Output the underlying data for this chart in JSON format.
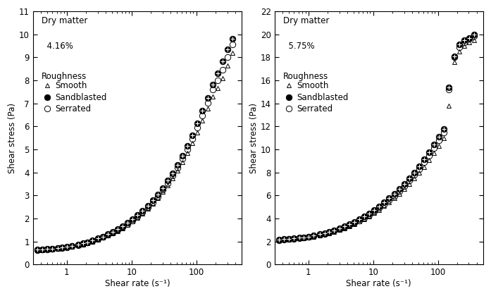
{
  "plot1": {
    "dry_matter_line1": "Dry matter",
    "dry_matter_line2": "  4.16%",
    "roughness_label": "Roughness",
    "ylabel": "Shear stress (Pa)",
    "xlabel": "Shear rate (s⁻¹)",
    "ylim": [
      0,
      11
    ],
    "yticks": [
      0,
      1,
      2,
      3,
      4,
      5,
      6,
      7,
      8,
      9,
      10,
      11
    ],
    "xlim_log": [
      0.3,
      500
    ],
    "shared_x": [
      0.35,
      0.42,
      0.5,
      0.6,
      0.72,
      0.85,
      1.0,
      1.2,
      1.5,
      1.8,
      2.1,
      2.5,
      3.0,
      3.6,
      4.3,
      5.1,
      6.1,
      7.3,
      8.7,
      10.4,
      12.4,
      14.8,
      17.7,
      21.1,
      25.2,
      30.1,
      35.9,
      42.9,
      51.2,
      61.2,
      73.1,
      87.3,
      104.3,
      124.6,
      148.8,
      177.8,
      212.3,
      253.5,
      302.9,
      361.8
    ],
    "smooth_y": [
      0.62,
      0.63,
      0.64,
      0.66,
      0.68,
      0.7,
      0.73,
      0.77,
      0.82,
      0.88,
      0.93,
      1.0,
      1.08,
      1.16,
      1.25,
      1.35,
      1.46,
      1.58,
      1.72,
      1.87,
      2.04,
      2.22,
      2.42,
      2.64,
      2.88,
      3.15,
      3.43,
      3.74,
      4.08,
      4.45,
      4.85,
      5.28,
      5.75,
      6.25,
      6.78,
      7.3,
      7.65,
      8.1,
      8.65,
      9.2
    ],
    "sandblasted_y": [
      0.64,
      0.65,
      0.67,
      0.69,
      0.71,
      0.73,
      0.76,
      0.8,
      0.86,
      0.92,
      0.97,
      1.04,
      1.13,
      1.21,
      1.31,
      1.41,
      1.53,
      1.66,
      1.8,
      1.96,
      2.14,
      2.33,
      2.55,
      2.78,
      3.04,
      3.33,
      3.64,
      3.97,
      4.33,
      4.73,
      5.16,
      5.62,
      6.13,
      6.67,
      7.25,
      7.82,
      8.3,
      8.82,
      9.35,
      9.82
    ],
    "serrated_y": [
      0.63,
      0.64,
      0.66,
      0.68,
      0.7,
      0.72,
      0.75,
      0.79,
      0.84,
      0.9,
      0.95,
      1.02,
      1.1,
      1.19,
      1.28,
      1.38,
      1.5,
      1.62,
      1.76,
      1.91,
      2.09,
      2.28,
      2.48,
      2.71,
      2.96,
      3.24,
      3.54,
      3.86,
      4.21,
      4.59,
      5.01,
      5.46,
      5.95,
      6.47,
      7.03,
      7.6,
      8.0,
      8.45,
      9.0,
      9.55
    ]
  },
  "plot2": {
    "dry_matter_line1": "Dry matter",
    "dry_matter_line2": "  5.75%",
    "roughness_label": "Roughness",
    "ylabel": "Shear stress (Pa)",
    "xlabel": "Shear rate (s⁻¹)",
    "ylim": [
      0,
      22
    ],
    "yticks": [
      0,
      2,
      4,
      6,
      8,
      10,
      12,
      14,
      16,
      18,
      20,
      22
    ],
    "xlim_log": [
      0.3,
      500
    ],
    "shared_x": [
      0.35,
      0.42,
      0.5,
      0.6,
      0.72,
      0.85,
      1.0,
      1.2,
      1.5,
      1.8,
      2.1,
      2.5,
      3.0,
      3.6,
      4.3,
      5.1,
      6.1,
      7.3,
      8.7,
      10.4,
      12.4,
      14.8,
      17.7,
      21.1,
      25.2,
      30.1,
      35.9,
      42.9,
      51.2,
      61.2,
      73.1,
      87.3,
      104.3,
      124.6,
      148.8,
      177.8,
      212.3,
      253.5,
      302.9,
      361.8
    ],
    "smooth_y": [
      2.1,
      2.15,
      2.18,
      2.22,
      2.26,
      2.3,
      2.35,
      2.42,
      2.52,
      2.62,
      2.72,
      2.85,
      3.0,
      3.16,
      3.33,
      3.52,
      3.73,
      3.96,
      4.2,
      4.47,
      4.76,
      5.07,
      5.4,
      5.76,
      6.14,
      6.55,
      6.99,
      7.46,
      7.96,
      8.49,
      9.06,
      9.67,
      10.3,
      11.0,
      13.8,
      17.6,
      18.5,
      19.0,
      19.3,
      19.5
    ],
    "sandblasted_y": [
      2.15,
      2.2,
      2.23,
      2.27,
      2.32,
      2.37,
      2.43,
      2.51,
      2.62,
      2.73,
      2.83,
      2.98,
      3.14,
      3.32,
      3.5,
      3.7,
      3.93,
      4.18,
      4.44,
      4.73,
      5.05,
      5.39,
      5.75,
      6.14,
      6.56,
      7.01,
      7.49,
      8.0,
      8.54,
      9.12,
      9.74,
      10.4,
      11.1,
      11.8,
      15.4,
      18.1,
      19.1,
      19.5,
      19.7,
      20.0
    ],
    "serrated_y": [
      2.12,
      2.17,
      2.21,
      2.25,
      2.29,
      2.34,
      2.4,
      2.48,
      2.58,
      2.68,
      2.79,
      2.93,
      3.08,
      3.25,
      3.43,
      3.62,
      3.84,
      4.08,
      4.33,
      4.61,
      4.92,
      5.25,
      5.6,
      5.97,
      6.38,
      6.81,
      7.28,
      7.77,
      8.3,
      8.87,
      9.47,
      10.1,
      10.8,
      11.5,
      15.2,
      18.0,
      18.9,
      19.3,
      19.6,
      19.85
    ]
  },
  "legend_labels": [
    "Smooth",
    "Sandblasted",
    "Serrated"
  ],
  "background_color": "#ffffff",
  "marker_size": 4,
  "font_size": 8.5
}
